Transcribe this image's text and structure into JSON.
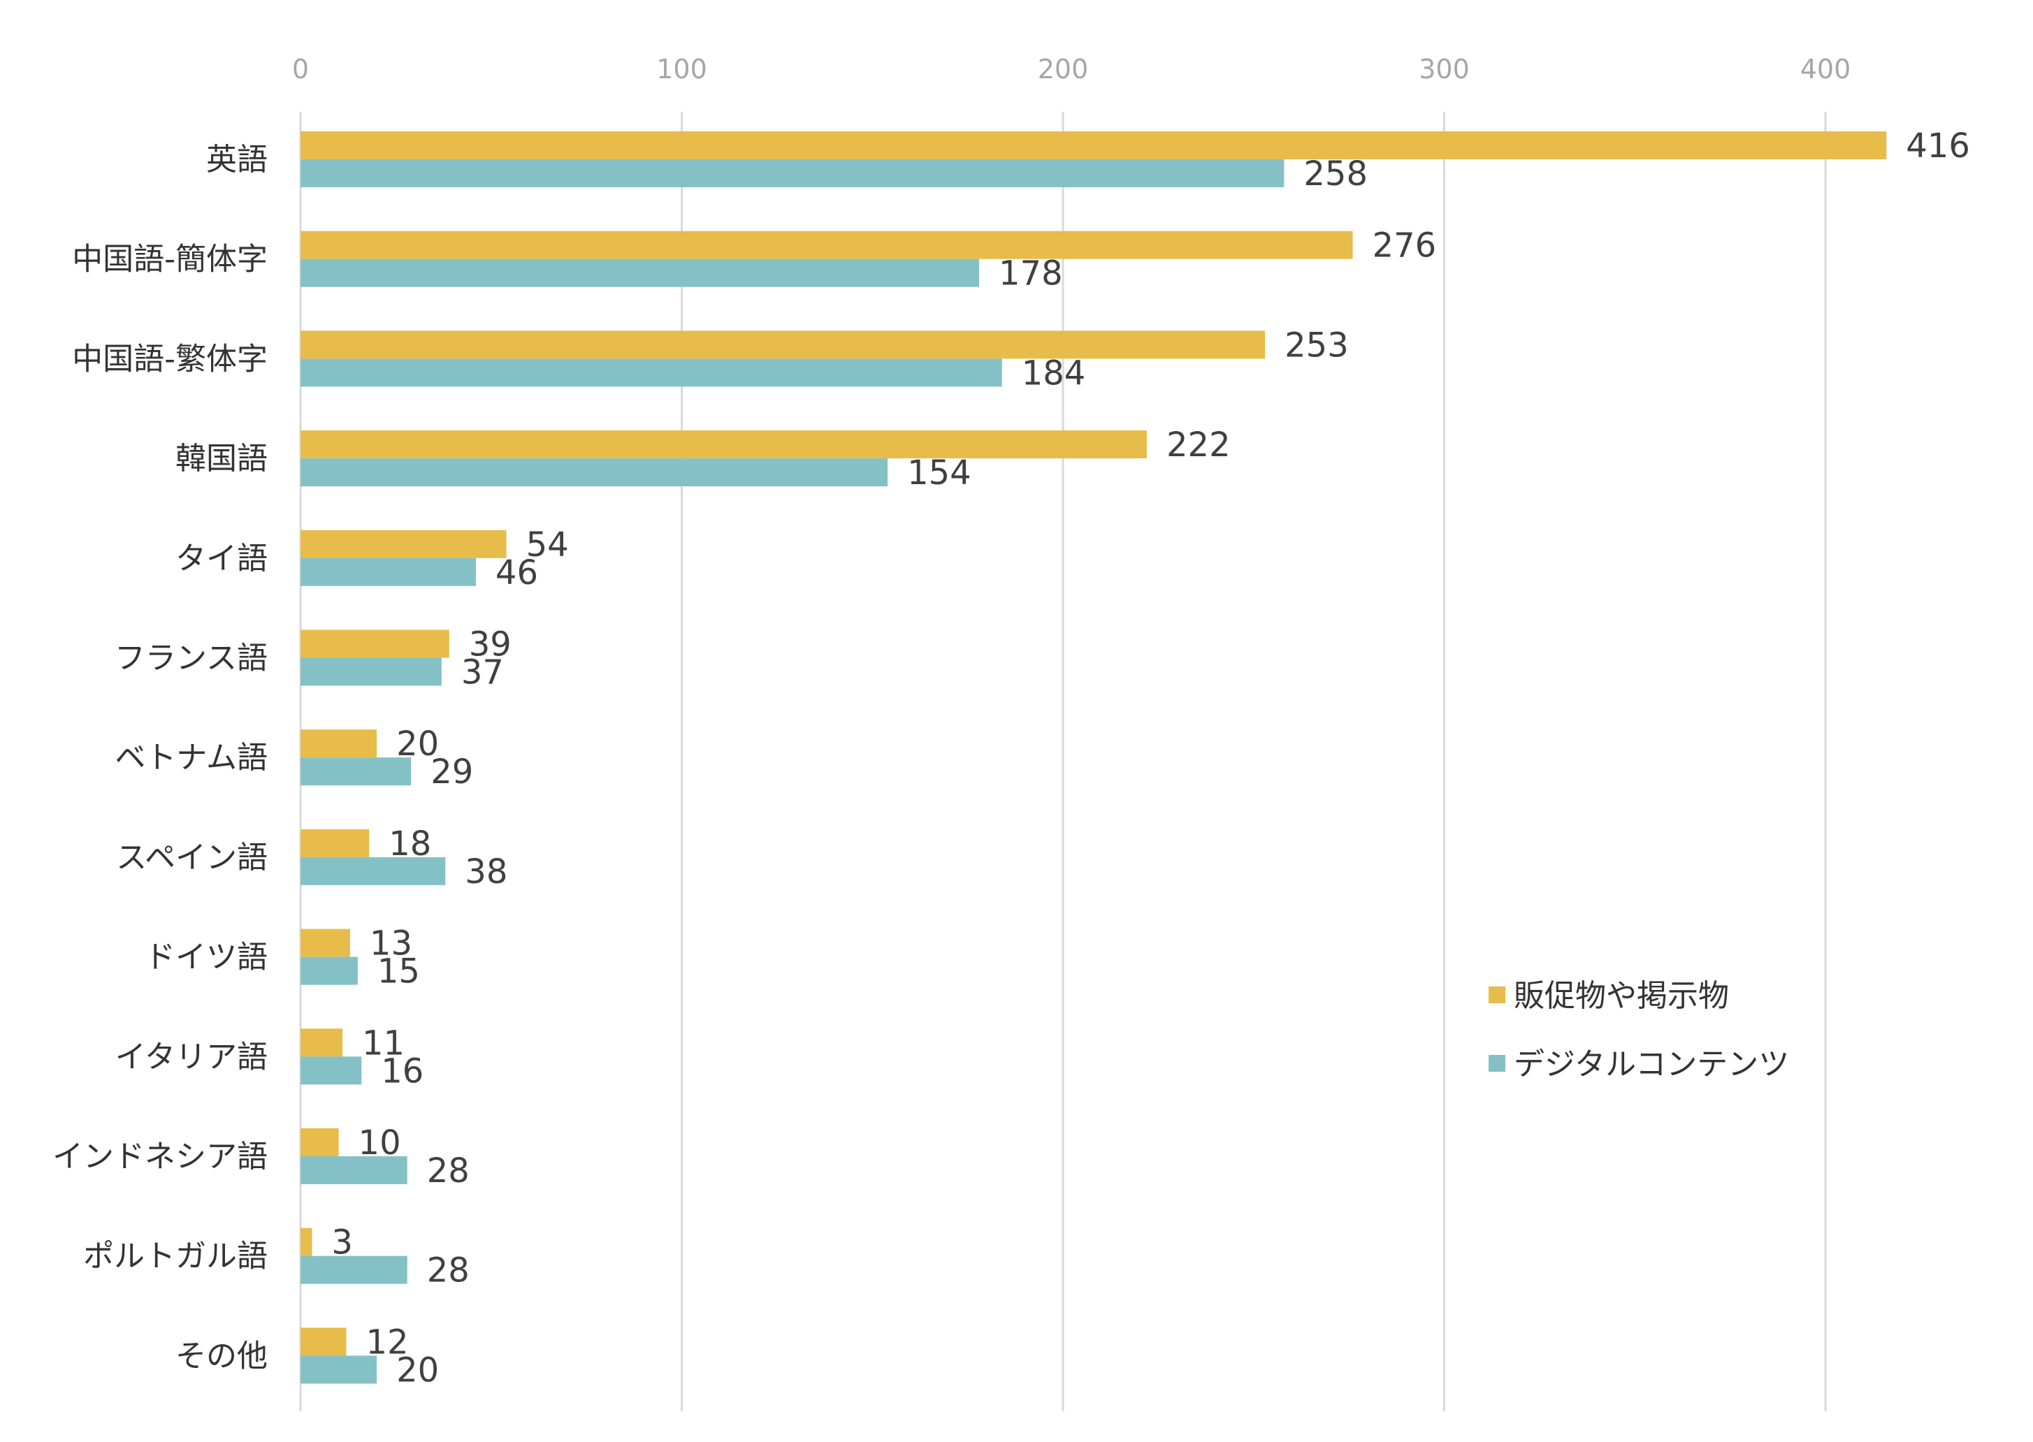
{
  "chart_data": {
    "type": "bar",
    "orientation": "horizontal",
    "title": "",
    "xlabel": "",
    "ylabel": "",
    "xlim": [
      0,
      430
    ],
    "x_ticks": [
      "0",
      "100",
      "200",
      "300",
      "400"
    ],
    "x_tick_values": [
      0,
      100,
      200,
      300,
      400
    ],
    "x_axis_position": "top",
    "grid": true,
    "legend_position": "bottom-right",
    "categories": [
      "英語",
      "中国語-簡体字",
      "中国語-繁体字",
      "韓国語",
      "タイ語",
      "フランス語",
      "ベトナム語",
      "スペイン語",
      "ドイツ語",
      "イタリア語",
      "インドネシア語",
      "ポルトガル語",
      "その他"
    ],
    "series": [
      {
        "name": "販促物や掲示物",
        "color": "#e8bc4a",
        "values": [
          416,
          276,
          253,
          222,
          54,
          39,
          20,
          18,
          13,
          11,
          10,
          3,
          12
        ]
      },
      {
        "name": "デジタルコンテンツ",
        "color": "#84c1c6",
        "values": [
          258,
          178,
          184,
          154,
          46,
          37,
          29,
          38,
          15,
          16,
          28,
          28,
          20
        ]
      }
    ]
  }
}
